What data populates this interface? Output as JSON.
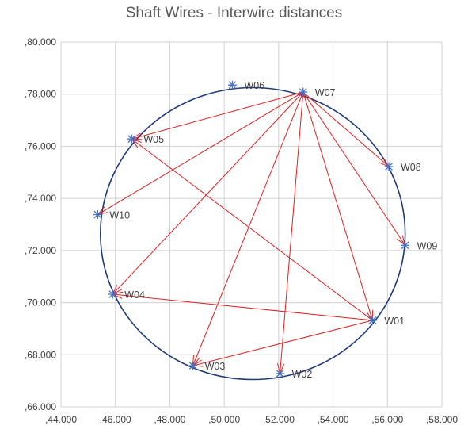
{
  "chart_data": {
    "type": "scatter",
    "title": "Shaft Wires - Interwire distances",
    "xlabel": "",
    "ylabel": "",
    "xlim": [
      44,
      58
    ],
    "ylim": [
      66,
      80
    ],
    "x_ticks": [
      44,
      46,
      48,
      50,
      52,
      54,
      56,
      58
    ],
    "y_ticks": [
      66,
      68,
      70,
      72,
      74,
      76,
      78,
      80
    ],
    "x_tick_labels": [
      ",44.000",
      ",46.000",
      ",48.000",
      ",50.000",
      ",52.000",
      ",54.000",
      ",56.000",
      ",58.000"
    ],
    "y_tick_labels": [
      ",66.000",
      ",68.000",
      ",70.000",
      ",72.000",
      ",74.000",
      ",76.000",
      ",78.000",
      ",80.000"
    ],
    "grid": true,
    "colors": {
      "points": "#4472c4",
      "circle": "#1f3a7a",
      "vectors": "#e02020",
      "grid": "#d0d0d0"
    },
    "points": [
      {
        "name": "W01",
        "x": 55.45,
        "y": 69.32
      },
      {
        "name": "W02",
        "x": 52.05,
        "y": 67.28
      },
      {
        "name": "W03",
        "x": 48.85,
        "y": 67.58
      },
      {
        "name": "W04",
        "x": 45.9,
        "y": 70.32
      },
      {
        "name": "W05",
        "x": 46.6,
        "y": 76.28
      },
      {
        "name": "W06",
        "x": 50.3,
        "y": 78.35
      },
      {
        "name": "W07",
        "x": 52.9,
        "y": 78.08
      },
      {
        "name": "W08",
        "x": 56.05,
        "y": 75.22
      },
      {
        "name": "W09",
        "x": 56.65,
        "y": 72.2
      },
      {
        "name": "W10",
        "x": 45.35,
        "y": 73.38
      }
    ],
    "circle": {
      "center": [
        51.05,
        72.65
      ],
      "radius": 5.6
    },
    "vectors": [
      {
        "from": "W07",
        "to": "W05"
      },
      {
        "from": "W07",
        "to": "W08"
      },
      {
        "from": "W07",
        "to": "W09"
      },
      {
        "from": "W07",
        "to": "W10"
      },
      {
        "from": "W07",
        "to": "W04"
      },
      {
        "from": "W07",
        "to": "W03"
      },
      {
        "from": "W07",
        "to": "W02"
      },
      {
        "from": "W07",
        "to": "W01"
      },
      {
        "from": "W01",
        "to": "W05"
      },
      {
        "from": "W01",
        "to": "W04"
      },
      {
        "from": "W01",
        "to": "W03"
      }
    ]
  }
}
